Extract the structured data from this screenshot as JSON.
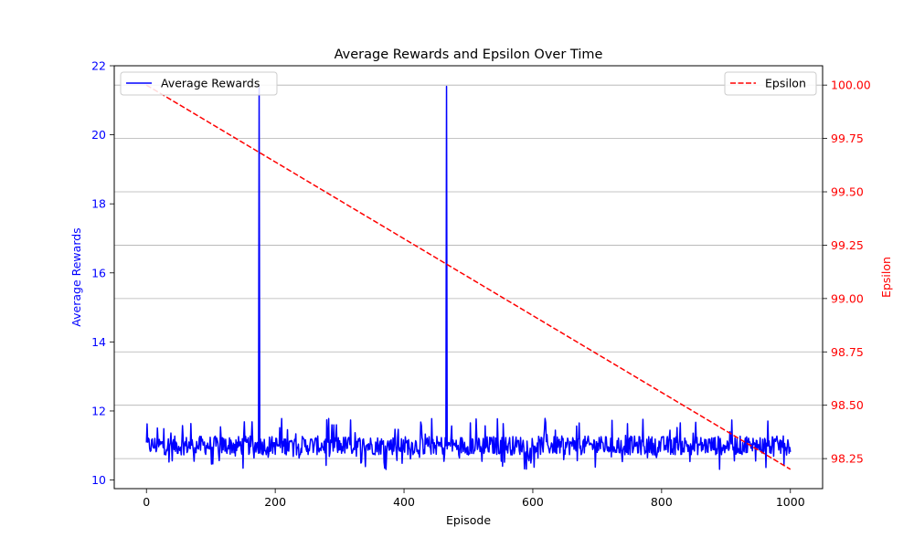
{
  "chart_data": {
    "type": "line",
    "title": "Average Rewards and Epsilon Over Time",
    "xlabel": "Episode",
    "xlim": [
      -50,
      1050
    ],
    "xticks": [
      0,
      200,
      400,
      600,
      800,
      1000
    ],
    "grid": "horizontal lines at right-axis ticks",
    "y_left": {
      "label": "Average Rewards",
      "color": "#0000ff",
      "lim": [
        9.75,
        22
      ],
      "ticks": [
        10,
        12,
        14,
        16,
        18,
        20,
        22
      ]
    },
    "y_right": {
      "label": "Epsilon",
      "color": "#ff0000",
      "lim": [
        98.1093,
        100.0906
      ],
      "ticks": [
        "98.25",
        "98.50",
        "98.75",
        "99.00",
        "99.25",
        "99.50",
        "99.75",
        "100.00"
      ]
    },
    "series": [
      {
        "name": "Average Rewards",
        "axis": "left",
        "color": "#0000ff",
        "style": "solid",
        "x_range": [
          0,
          1000
        ],
        "baseline": 11.0,
        "noise_band": [
          10.3,
          11.8
        ],
        "spikes": [
          {
            "x": 175,
            "y": 21.4
          },
          {
            "x": 466,
            "y": 21.4
          }
        ]
      },
      {
        "name": "Epsilon",
        "axis": "right",
        "color": "#ff0000",
        "style": "dashed",
        "x": [
          0,
          1000
        ],
        "y": [
          100.0,
          98.2
        ]
      }
    ],
    "legends": [
      {
        "label": "Average Rewards",
        "placement": "upper-left"
      },
      {
        "label": "Epsilon",
        "placement": "upper-right"
      }
    ]
  }
}
